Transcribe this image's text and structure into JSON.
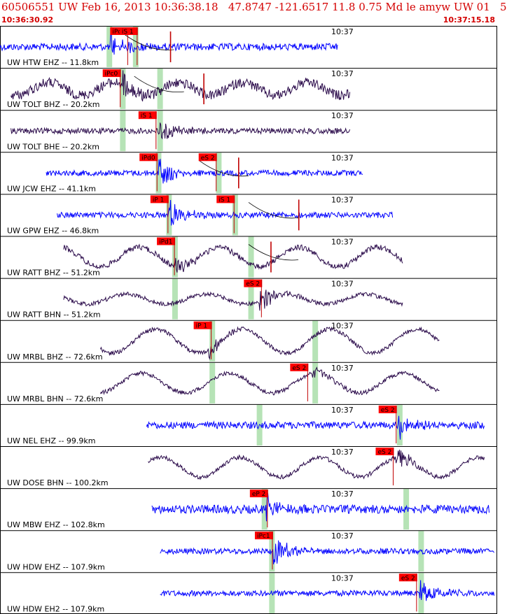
{
  "header": {
    "title": "60506551 UW Feb 16, 2013 10:36:38.18   47.8747 -121.6517 11.8 0.75 Md le amyw UW 01   5",
    "start_time": "10:36:30.92",
    "end_time": "10:37:15.18"
  },
  "chart_data": {
    "type": "seismogram",
    "time_label": "10:37",
    "colors": {
      "ehz": "#0000ff",
      "bh": "#2a0a4a",
      "pick_box": "#ff0000",
      "pick_line": "#c00000",
      "marker": "#b6e3b6",
      "border": "#000000"
    },
    "traces": [
      {
        "label": "UW HTW EHZ -- 11.8km",
        "kind": "ehz",
        "trace_start": 0,
        "trace_end": 68,
        "arrival": 22,
        "amp": 5,
        "event_amp": 18,
        "noise": 5,
        "wave_amp": 0,
        "wave_period": 0,
        "markers": [
          22,
          27.3
        ],
        "picks": [
          {
            "t": 22.3,
            "label": "iPd0"
          },
          {
            "t": 24.2,
            "label": "iS 1"
          }
        ],
        "red_ticks": [
          34.3
        ],
        "curve": [
          25,
          35
        ]
      },
      {
        "label": "UW TOLT BHZ -- 20.2km",
        "kind": "bh",
        "trace_start": 2.2,
        "trace_end": 70.5,
        "arrival": 24.6,
        "amp": 7,
        "event_amp": 20,
        "noise": 7,
        "wave_amp": 9,
        "wave_period": 13,
        "markers": [
          24.7,
          32.2
        ],
        "picks": [
          {
            "t": 20.8,
            "label": "iPc0"
          }
        ],
        "red_ticks": [
          41
        ],
        "curve": [
          27,
          37
        ]
      },
      {
        "label": "UW TOLT BHE -- 20.2km",
        "kind": "bh",
        "trace_start": 2.2,
        "trace_end": 70.5,
        "arrival": 31.8,
        "amp": 4,
        "event_amp": 20,
        "noise": 4,
        "wave_amp": 0,
        "wave_period": 0,
        "markers": [
          24.7,
          32.2
        ],
        "picks": [
          {
            "t": 28,
            "label": "iS 1"
          }
        ],
        "red_ticks": [],
        "curve": null
      },
      {
        "label": "UW JCW EHZ -- 41.1km",
        "kind": "ehz",
        "trace_start": 9.3,
        "trace_end": 73,
        "arrival": 31.9,
        "amp": 4,
        "event_amp": 20,
        "noise": 4,
        "wave_amp": 0,
        "wave_period": 0,
        "markers": [
          31.9,
          44
        ],
        "picks": [
          {
            "t": 28.2,
            "label": "iPd0"
          },
          {
            "t": 40.1,
            "label": "eS 2"
          }
        ],
        "red_ticks": [
          48
        ],
        "curve": [
          40,
          50
        ]
      },
      {
        "label": "UW GPW EHZ -- 46.8km",
        "kind": "ehz",
        "trace_start": 11.5,
        "trace_end": 79,
        "arrival": 34,
        "amp": 4,
        "event_amp": 20,
        "noise": 4,
        "wave_amp": 0,
        "wave_period": 0,
        "markers": [
          34,
          47.3
        ],
        "picks": [
          {
            "t": 30.4,
            "label": "iP 1"
          },
          {
            "t": 43.7,
            "label": "iS 1"
          }
        ],
        "red_ticks": [
          60.1
        ],
        "curve": [
          50,
          60
        ]
      },
      {
        "label": "UW RATT BHZ -- 51.2km",
        "kind": "bh",
        "trace_start": 12.8,
        "trace_end": 81,
        "arrival": 35.2,
        "amp": 4,
        "event_amp": 14,
        "noise": 4,
        "wave_amp": 14,
        "wave_period": 16,
        "markers": [
          35.2,
          50.5
        ],
        "picks": [
          {
            "t": 31.7,
            "label": "iPd1"
          }
        ],
        "red_ticks": [
          54.5
        ],
        "curve": [
          50,
          60
        ]
      },
      {
        "label": "UW RATT BHN -- 51.2km",
        "kind": "bh",
        "trace_start": 12.8,
        "trace_end": 81,
        "arrival": 52.2,
        "amp": 3,
        "event_amp": 18,
        "noise": 3,
        "wave_amp": 7,
        "wave_period": 16,
        "markers": [
          35.2,
          50.5
        ],
        "picks": [
          {
            "t": 49.2,
            "label": "eS 2"
          }
        ],
        "red_ticks": [],
        "curve": null
      },
      {
        "label": "UW MRBL BHZ -- 72.6km",
        "kind": "bh",
        "trace_start": 20.2,
        "trace_end": 88.5,
        "arrival": 42,
        "amp": 3,
        "event_amp": 12,
        "noise": 3,
        "wave_amp": 17,
        "wave_period": 17.5,
        "markers": [
          42.7,
          63.4
        ],
        "picks": [
          {
            "t": 39.1,
            "label": "iP 1"
          }
        ],
        "red_ticks": [],
        "curve": null
      },
      {
        "label": "UW MRBL BHN -- 72.6km",
        "kind": "bh",
        "trace_start": 20.2,
        "trace_end": 88.5,
        "arrival": 62.6,
        "amp": 3,
        "event_amp": 10,
        "noise": 3,
        "wave_amp": 14,
        "wave_period": 17.5,
        "markers": [
          42.7,
          63.4
        ],
        "picks": [
          {
            "t": 58.5,
            "label": "eS 2"
          }
        ],
        "red_ticks": [],
        "curve": null
      },
      {
        "label": "UW NEL EHZ -- 99.9km",
        "kind": "ehz",
        "trace_start": 29.5,
        "trace_end": 97.5,
        "arrival": 80.2,
        "amp": 5,
        "event_amp": 20,
        "noise": 5,
        "wave_amp": 0,
        "wave_period": 0,
        "markers": [
          52.2,
          80.4
        ],
        "picks": [
          {
            "t": 76.3,
            "label": "eS 2"
          }
        ],
        "red_ticks": [],
        "curve": null
      },
      {
        "label": "UW DOSE BHN -- 100.2km",
        "kind": "bh",
        "trace_start": 29.8,
        "trace_end": 97.5,
        "arrival": 79.6,
        "amp": 3,
        "event_amp": 16,
        "noise": 3,
        "wave_amp": 14,
        "wave_period": 16,
        "markers": [],
        "picks": [
          {
            "t": 75.7,
            "label": "eS 2"
          }
        ],
        "red_ticks": [],
        "curve": null
      },
      {
        "label": "UW MBW EHZ -- 102.8km",
        "kind": "ehz",
        "trace_start": 30.5,
        "trace_end": 98.5,
        "arrival": 53.5,
        "amp": 6,
        "event_amp": 16,
        "noise": 6,
        "wave_amp": 0,
        "wave_period": 0,
        "markers": [
          53.2,
          81.7
        ],
        "picks": [
          {
            "t": 50.4,
            "label": "eP 2"
          }
        ],
        "red_ticks": [],
        "curve": null
      },
      {
        "label": "UW HDW EHZ -- 107.9km",
        "kind": "ehz",
        "trace_start": 32.2,
        "trace_end": 99.5,
        "arrival": 55,
        "amp": 4,
        "event_amp": 20,
        "noise": 4,
        "wave_amp": 0,
        "wave_period": 0,
        "markers": [
          54.7,
          84.7
        ],
        "picks": [
          {
            "t": 51.4,
            "label": "iPc1"
          }
        ],
        "red_ticks": [],
        "curve": null
      },
      {
        "label": "UW HDW EH2 -- 107.9km",
        "kind": "ehz",
        "trace_start": 32.2,
        "trace_end": 99.5,
        "arrival": 84.4,
        "amp": 4,
        "event_amp": 20,
        "noise": 4,
        "wave_amp": 0,
        "wave_period": 0,
        "markers": [
          54.7,
          84.7
        ],
        "picks": [
          {
            "t": 80.4,
            "label": "eS 2"
          }
        ],
        "red_ticks": [],
        "curve": null
      }
    ]
  }
}
